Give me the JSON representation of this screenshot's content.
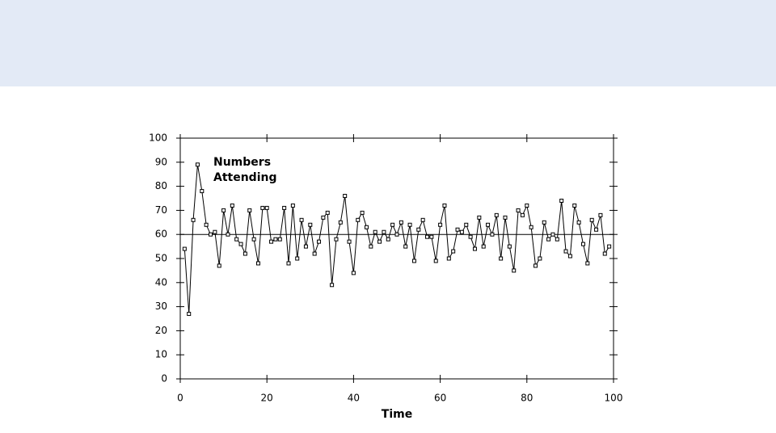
{
  "chart_data": {
    "type": "line",
    "annotation": [
      "Numbers",
      "Attending"
    ],
    "xlabel": "Time",
    "x": [
      1,
      2,
      3,
      4,
      5,
      6,
      7,
      8,
      9,
      10,
      11,
      12,
      13,
      14,
      15,
      16,
      17,
      18,
      19,
      20,
      21,
      22,
      23,
      24,
      25,
      26,
      27,
      28,
      29,
      30,
      31,
      32,
      33,
      34,
      35,
      36,
      37,
      38,
      39,
      40,
      41,
      42,
      43,
      44,
      45,
      46,
      47,
      48,
      49,
      50,
      51,
      52,
      53,
      54,
      55,
      56,
      57,
      58,
      59,
      60,
      61,
      62,
      63,
      64,
      65,
      66,
      67,
      68,
      69,
      70,
      71,
      72,
      73,
      74,
      75,
      76,
      77,
      78,
      79,
      80,
      81,
      82,
      83,
      84,
      85,
      86,
      87,
      88,
      89,
      90,
      91,
      92,
      93,
      94,
      95,
      96,
      97,
      98,
      99
    ],
    "series": [
      {
        "color": "#000000",
        "values": [
          54,
          27,
          66,
          89,
          78,
          64,
          60,
          61,
          47,
          70,
          60,
          72,
          58,
          56,
          52,
          70,
          58,
          48,
          71,
          71,
          57,
          58,
          58,
          71,
          48,
          72,
          50,
          66,
          55,
          64,
          52,
          57,
          67,
          69,
          39,
          58,
          65,
          76,
          57,
          44,
          66,
          69,
          63,
          55,
          61,
          57,
          61,
          58,
          64,
          60,
          65,
          55,
          64,
          49,
          62,
          66,
          59,
          59,
          49,
          64,
          72,
          50,
          53,
          62,
          61,
          64,
          59,
          54,
          67,
          55,
          64,
          60,
          68,
          50,
          67,
          55,
          45,
          70,
          68,
          72,
          63,
          47,
          50,
          65,
          58,
          60,
          58,
          74,
          53,
          51,
          72,
          65,
          56,
          48,
          66,
          62,
          68,
          52,
          55
        ]
      }
    ],
    "reference_line": 60,
    "xlim": [
      0,
      100
    ],
    "ylim": [
      0,
      100
    ],
    "xticks": [
      0,
      20,
      40,
      60,
      80,
      100
    ],
    "yticks": [
      0,
      10,
      20,
      30,
      40,
      50,
      60,
      70,
      80,
      90,
      100
    ]
  }
}
